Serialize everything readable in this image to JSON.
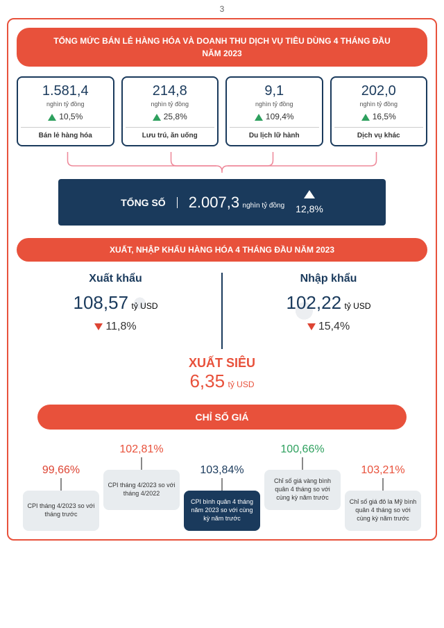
{
  "page_number": "3",
  "section1": {
    "title": "TỔNG MỨC BÁN LẺ HÀNG HÓA VÀ DOANH THU DỊCH VỤ TIÊU DÙNG 4 THÁNG ĐẦU NĂM 2023",
    "cards": [
      {
        "value": "1.581,4",
        "unit": "nghìn tỷ đồng",
        "pct": "10,5%",
        "label": "Bán lẻ hàng hóa"
      },
      {
        "value": "214,8",
        "unit": "nghìn tỷ đồng",
        "pct": "25,8%",
        "label": "Lưu trú, ăn uống"
      },
      {
        "value": "9,1",
        "unit": "nghìn tỷ đồng",
        "pct": "109,4%",
        "label": "Du lịch lữ hành"
      },
      {
        "value": "202,0",
        "unit": "nghìn tỷ đồng",
        "pct": "16,5%",
        "label": "Dịch vụ khác"
      }
    ],
    "total": {
      "label": "TỔNG SỐ",
      "value": "2.007,3",
      "unit": "nghìn tỷ đồng",
      "pct": "12,8%"
    }
  },
  "section2": {
    "title": "XUẤT, NHẬP KHẨU HÀNG HÓA 4 THÁNG ĐẦU NĂM 2023",
    "export": {
      "title": "Xuất khẩu",
      "value": "108,57",
      "unit": "tỷ USD",
      "pct": "11,8%"
    },
    "import": {
      "title": "Nhập khẩu",
      "value": "102,22",
      "unit": "tỷ USD",
      "pct": "15,4%"
    },
    "surplus": {
      "label": "XUẤT SIÊU",
      "value": "6,35",
      "unit": "tỷ USD"
    }
  },
  "section3": {
    "title": "CHỈ SỐ GIÁ",
    "items": [
      {
        "value": "99,66%",
        "color": "red",
        "desc": "CPI tháng 4/2023 so với tháng trước",
        "style": "light",
        "lift": 0
      },
      {
        "value": "102,81%",
        "color": "orange",
        "desc": "CPI tháng 4/2023 so với tháng 4/2022",
        "style": "light",
        "lift": 30
      },
      {
        "value": "103,84%",
        "color": "navy",
        "desc": "CPI bình quân 4 tháng năm 2023 so với cùng kỳ năm trước",
        "style": "dark",
        "lift": 0
      },
      {
        "value": "100,66%",
        "color": "green",
        "desc": "Chỉ số giá vàng bình quân 4 tháng so với cùng kỳ năm trước",
        "style": "light",
        "lift": 30
      },
      {
        "value": "103,21%",
        "color": "orange",
        "desc": "Chỉ số giá đô la Mỹ bình quân 4 tháng so với cùng kỳ năm trước",
        "style": "light",
        "lift": 0
      }
    ]
  }
}
